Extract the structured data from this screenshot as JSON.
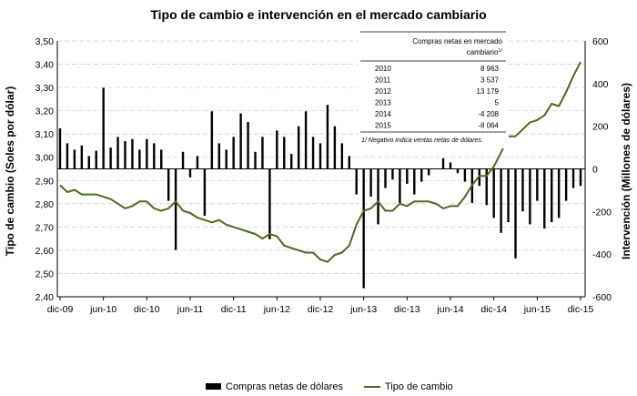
{
  "chart_data": {
    "type": "bar+line",
    "title": "Tipo de cambio e intervención en el mercado cambiario",
    "ylabel_left": "Tipo de cambio (Soles por dólar)",
    "ylabel_right": "Intervención (Millones de dólares)",
    "ylim_left": [
      2.4,
      3.5
    ],
    "ylim_right": [
      -600,
      600
    ],
    "yticks_left": [
      "2,40",
      "2,50",
      "2,60",
      "2,70",
      "2,80",
      "2,90",
      "3,00",
      "3,10",
      "3,20",
      "3,30",
      "3,40",
      "3,50"
    ],
    "yticks_right": [
      "-600",
      "-400",
      "-200",
      "0",
      "200",
      "400",
      "600"
    ],
    "grid": true,
    "x_tick_labels": [
      "dic-09",
      "jun-10",
      "dic-10",
      "jun-11",
      "dic-11",
      "jun-12",
      "dic-12",
      "jun-13",
      "dic-13",
      "jun-14",
      "dic-14",
      "jun-15",
      "dic-15"
    ],
    "legend": {
      "position": "bottom",
      "items": [
        {
          "label": "Compras netas de dólares",
          "color": "#000000",
          "kind": "bar"
        },
        {
          "label": "Tipo de cambio",
          "color": "#4a6b1f",
          "kind": "line"
        }
      ]
    },
    "series": [
      {
        "name": "Tipo de cambio",
        "kind": "line",
        "axis": "left",
        "color": "#4a6b1f",
        "points": [
          [
            "2009-12",
            2.88
          ],
          [
            "2010-01",
            2.85
          ],
          [
            "2010-02",
            2.86
          ],
          [
            "2010-03",
            2.84
          ],
          [
            "2010-04",
            2.84
          ],
          [
            "2010-05",
            2.84
          ],
          [
            "2010-06",
            2.83
          ],
          [
            "2010-07",
            2.82
          ],
          [
            "2010-08",
            2.8
          ],
          [
            "2010-09",
            2.78
          ],
          [
            "2010-10",
            2.79
          ],
          [
            "2010-11",
            2.81
          ],
          [
            "2010-12",
            2.81
          ],
          [
            "2011-01",
            2.78
          ],
          [
            "2011-02",
            2.77
          ],
          [
            "2011-03",
            2.78
          ],
          [
            "2011-04",
            2.81
          ],
          [
            "2011-05",
            2.77
          ],
          [
            "2011-06",
            2.76
          ],
          [
            "2011-07",
            2.74
          ],
          [
            "2011-08",
            2.73
          ],
          [
            "2011-09",
            2.72
          ],
          [
            "2011-10",
            2.73
          ],
          [
            "2011-11",
            2.71
          ],
          [
            "2011-12",
            2.7
          ],
          [
            "2012-01",
            2.69
          ],
          [
            "2012-02",
            2.68
          ],
          [
            "2012-03",
            2.67
          ],
          [
            "2012-04",
            2.65
          ],
          [
            "2012-05",
            2.67
          ],
          [
            "2012-06",
            2.66
          ],
          [
            "2012-07",
            2.62
          ],
          [
            "2012-08",
            2.61
          ],
          [
            "2012-09",
            2.6
          ],
          [
            "2012-10",
            2.59
          ],
          [
            "2012-11",
            2.59
          ],
          [
            "2012-12",
            2.56
          ],
          [
            "2013-01",
            2.55
          ],
          [
            "2013-02",
            2.58
          ],
          [
            "2013-03",
            2.59
          ],
          [
            "2013-04",
            2.62
          ],
          [
            "2013-05",
            2.71
          ],
          [
            "2013-06",
            2.77
          ],
          [
            "2013-07",
            2.78
          ],
          [
            "2013-08",
            2.81
          ],
          [
            "2013-09",
            2.77
          ],
          [
            "2013-10",
            2.77
          ],
          [
            "2013-11",
            2.8
          ],
          [
            "2013-12",
            2.79
          ],
          [
            "2014-01",
            2.81
          ],
          [
            "2014-02",
            2.81
          ],
          [
            "2014-03",
            2.81
          ],
          [
            "2014-04",
            2.8
          ],
          [
            "2014-05",
            2.78
          ],
          [
            "2014-06",
            2.79
          ],
          [
            "2014-07",
            2.79
          ],
          [
            "2014-08",
            2.83
          ],
          [
            "2014-09",
            2.88
          ],
          [
            "2014-10",
            2.92
          ],
          [
            "2014-11",
            2.92
          ],
          [
            "2014-12",
            2.96
          ],
          [
            "2015-01",
            3.02
          ],
          [
            "2015-02",
            3.09
          ],
          [
            "2015-03",
            3.09
          ],
          [
            "2015-04",
            3.12
          ],
          [
            "2015-05",
            3.15
          ],
          [
            "2015-06",
            3.16
          ],
          [
            "2015-07",
            3.18
          ],
          [
            "2015-08",
            3.23
          ],
          [
            "2015-09",
            3.22
          ],
          [
            "2015-10",
            3.28
          ],
          [
            "2015-11",
            3.35
          ],
          [
            "2015-12",
            3.41
          ]
        ]
      },
      {
        "name": "Compras netas de dólares",
        "kind": "bar",
        "axis": "right",
        "color": "#000000",
        "points": [
          [
            "2009-12",
            190
          ],
          [
            "2010-01",
            120
          ],
          [
            "2010-02",
            90
          ],
          [
            "2010-03",
            110
          ],
          [
            "2010-04",
            60
          ],
          [
            "2010-05",
            85
          ],
          [
            "2010-06",
            380
          ],
          [
            "2010-07",
            100
          ],
          [
            "2010-08",
            150
          ],
          [
            "2010-09",
            130
          ],
          [
            "2010-10",
            140
          ],
          [
            "2010-11",
            90
          ],
          [
            "2010-12",
            140
          ],
          [
            "2011-01",
            120
          ],
          [
            "2011-02",
            90
          ],
          [
            "2011-03",
            -150
          ],
          [
            "2011-04",
            -380
          ],
          [
            "2011-05",
            80
          ],
          [
            "2011-06",
            -40
          ],
          [
            "2011-07",
            60
          ],
          [
            "2011-08",
            -220
          ],
          [
            "2011-09",
            270
          ],
          [
            "2011-10",
            120
          ],
          [
            "2011-11",
            90
          ],
          [
            "2011-12",
            150
          ],
          [
            "2012-01",
            260
          ],
          [
            "2012-02",
            220
          ],
          [
            "2012-03",
            80
          ],
          [
            "2012-04",
            150
          ],
          [
            "2012-05",
            -330
          ],
          [
            "2012-06",
            180
          ],
          [
            "2012-07",
            150
          ],
          [
            "2012-08",
            70
          ],
          [
            "2012-09",
            200
          ],
          [
            "2012-10",
            270
          ],
          [
            "2012-11",
            150
          ],
          [
            "2012-12",
            120
          ],
          [
            "2013-01",
            300
          ],
          [
            "2013-02",
            200
          ],
          [
            "2013-03",
            120
          ],
          [
            "2013-04",
            60
          ],
          [
            "2013-05",
            -120
          ],
          [
            "2013-06",
            -560
          ],
          [
            "2013-07",
            -130
          ],
          [
            "2013-08",
            -260
          ],
          [
            "2013-09",
            -90
          ],
          [
            "2013-10",
            -50
          ],
          [
            "2013-11",
            -160
          ],
          [
            "2013-12",
            -70
          ],
          [
            "2014-01",
            -120
          ],
          [
            "2014-02",
            -60
          ],
          [
            "2014-03",
            -30
          ],
          [
            "2014-04",
            0
          ],
          [
            "2014-05",
            50
          ],
          [
            "2014-06",
            30
          ],
          [
            "2014-07",
            -20
          ],
          [
            "2014-08",
            -60
          ],
          [
            "2014-09",
            -160
          ],
          [
            "2014-10",
            -80
          ],
          [
            "2014-11",
            -170
          ],
          [
            "2014-12",
            -230
          ],
          [
            "2015-01",
            -300
          ],
          [
            "2015-02",
            -250
          ],
          [
            "2015-03",
            -420
          ],
          [
            "2015-04",
            -200
          ],
          [
            "2015-05",
            -260
          ],
          [
            "2015-06",
            -150
          ],
          [
            "2015-07",
            -280
          ],
          [
            "2015-08",
            -250
          ],
          [
            "2015-09",
            -230
          ],
          [
            "2015-10",
            -150
          ],
          [
            "2015-11",
            -90
          ],
          [
            "2015-12",
            -80
          ]
        ]
      }
    ],
    "inset_table": {
      "header": "Compras netas en mercado cambiario",
      "header_sup": "1/",
      "rows": [
        {
          "year": "2010",
          "value": "8 963"
        },
        {
          "year": "2011",
          "value": "3 537"
        },
        {
          "year": "2012",
          "value": "13 179"
        },
        {
          "year": "2013",
          "value": "5"
        },
        {
          "year": "2014",
          "value": "-4 208"
        },
        {
          "year": "2015",
          "value": "-8 064"
        }
      ],
      "footnote": "1/ Negativo indica ventas netas de dólares."
    }
  }
}
